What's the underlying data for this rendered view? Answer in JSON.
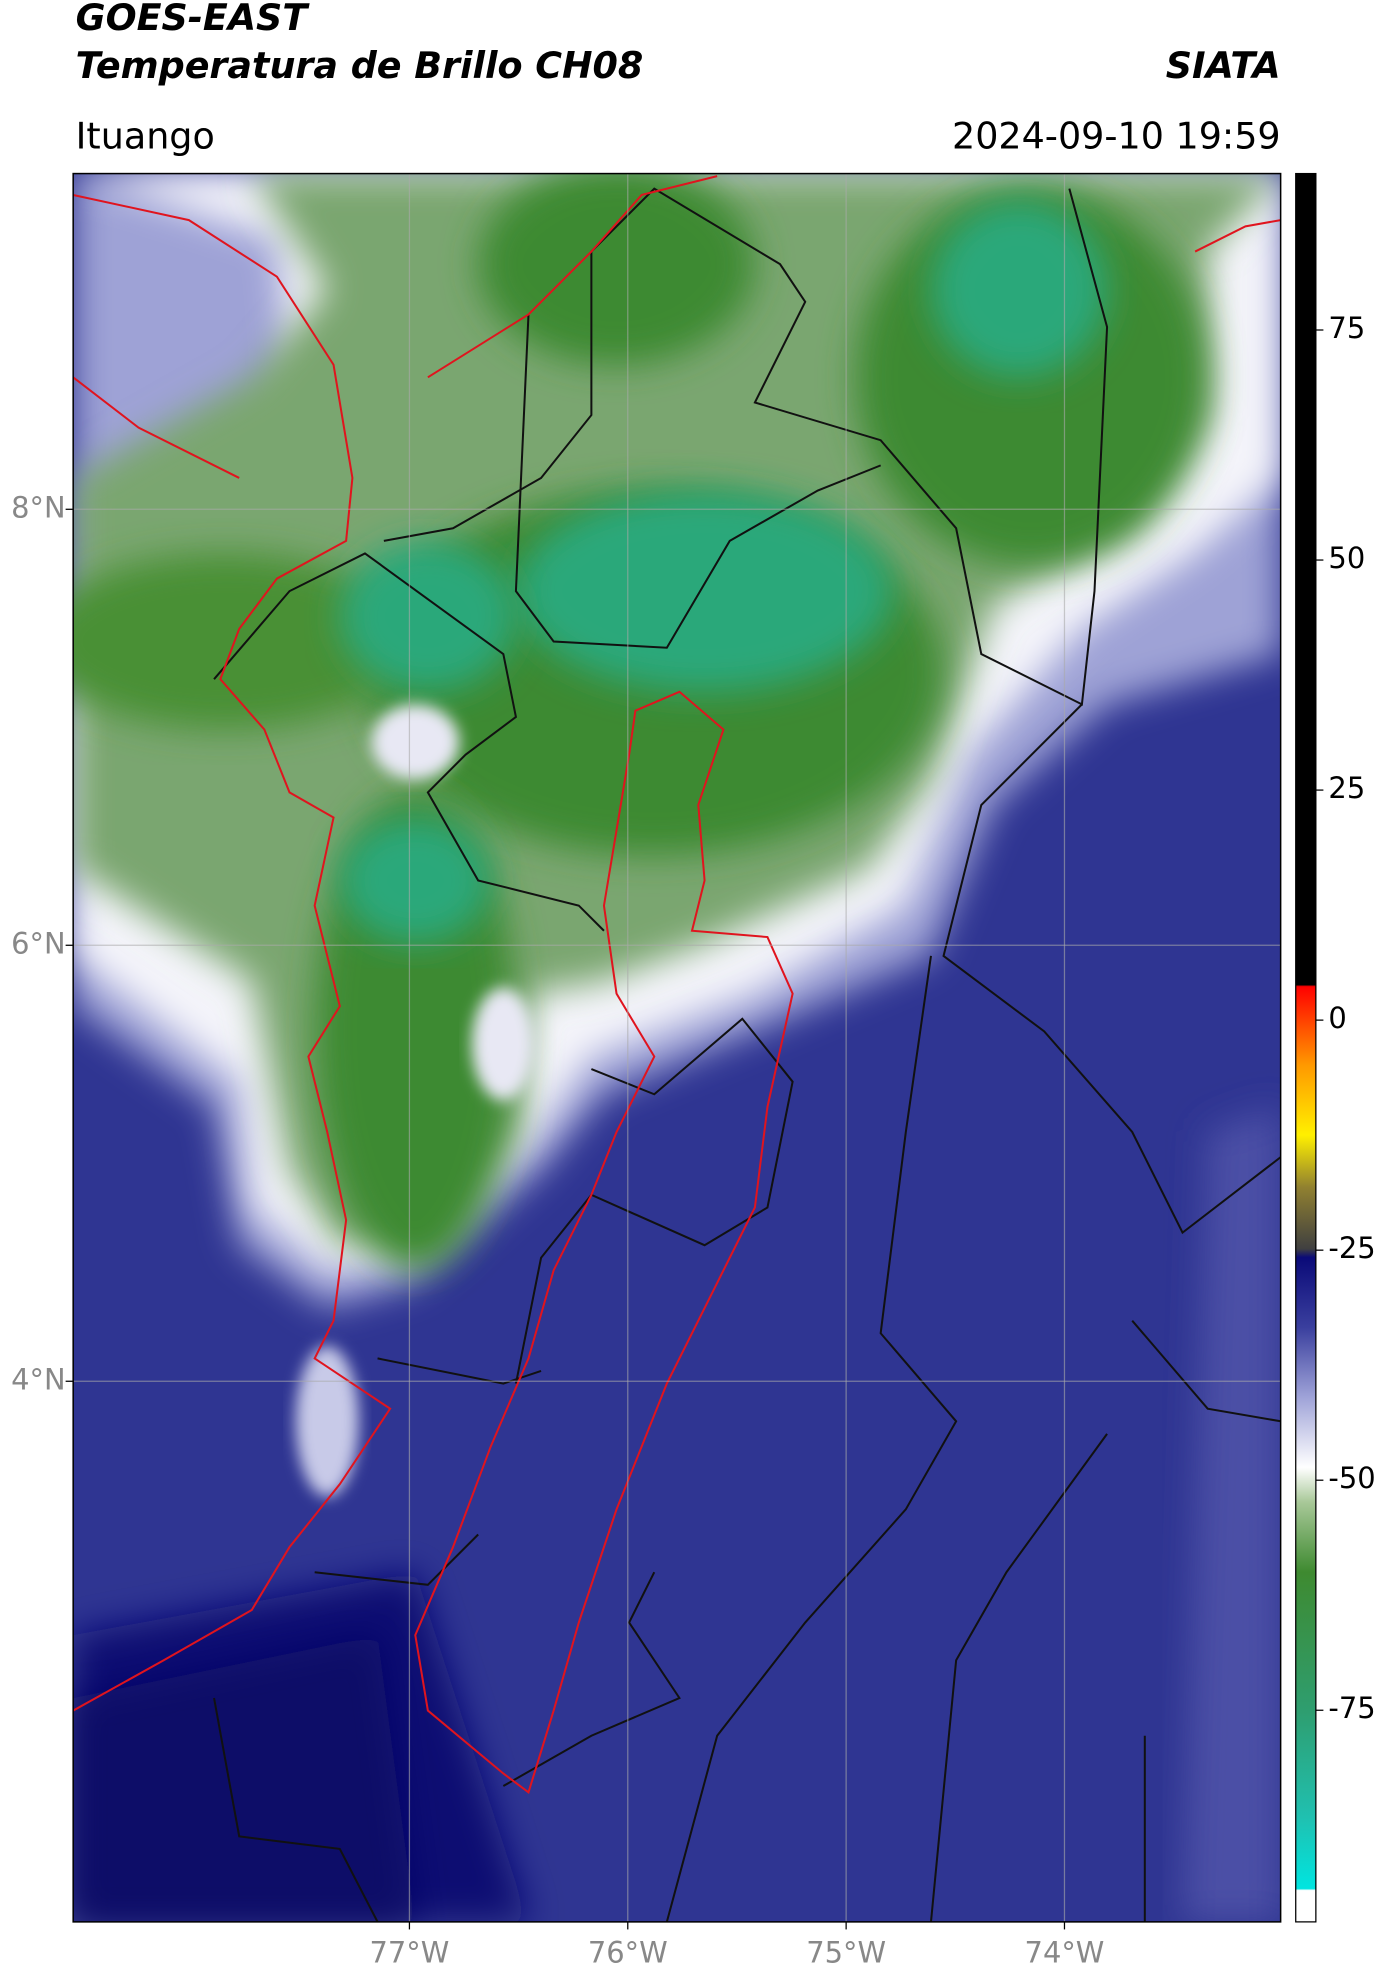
{
  "header": {
    "title": "GOES-EAST",
    "subtitle": "Temperatura de Brillo CH08",
    "source": "SIATA",
    "region": "Ituango",
    "datetime": "2024-09-10 19:59"
  },
  "map": {
    "xlim": [
      -78.54,
      -73.01
    ],
    "ylim": [
      1.52,
      9.54
    ],
    "xticks": [
      {
        "value": -77,
        "label": "77°W"
      },
      {
        "value": -76,
        "label": "76°W"
      },
      {
        "value": -75,
        "label": "75°W"
      },
      {
        "value": -74,
        "label": "74°W"
      }
    ],
    "yticks": [
      {
        "value": 4,
        "label": "4°N"
      },
      {
        "value": 6,
        "label": "6°N"
      },
      {
        "value": 8,
        "label": "8°N"
      }
    ],
    "grid": true
  },
  "colorbar": {
    "lim": [
      -98,
      92
    ],
    "ticks": [
      -75,
      -50,
      -25,
      0,
      25,
      50,
      75
    ]
  }
}
